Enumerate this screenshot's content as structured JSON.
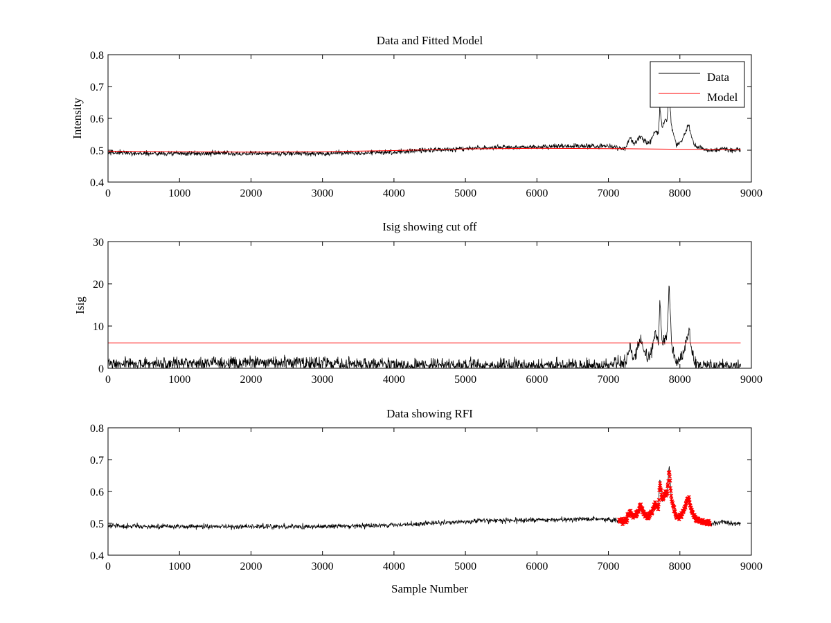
{
  "figure": {
    "background": "#ffffff"
  },
  "chart_data": [
    {
      "type": "line",
      "title": "Data and Fitted Model",
      "xlabel": "",
      "ylabel": "Intensity",
      "xlim": [
        0,
        9000
      ],
      "ylim": [
        0.4,
        0.8
      ],
      "xticks": [
        0,
        1000,
        2000,
        3000,
        4000,
        5000,
        6000,
        7000,
        8000,
        9000
      ],
      "yticks": [
        0.4,
        0.5,
        0.6,
        0.7,
        0.8
      ],
      "ytick_decimals": 1,
      "legend": {
        "placement": "top-right",
        "entries": [
          "Data",
          "Model"
        ]
      },
      "series": [
        {
          "name": "Data",
          "color": "#000000",
          "kind": "noisy-line",
          "x_end": 8850,
          "noise": 0.004,
          "x": [
            0,
            500,
            1000,
            2000,
            3000,
            3500,
            4000,
            4500,
            5000,
            5200,
            5500,
            6000,
            6500,
            7000,
            7200,
            7250,
            7300,
            7350,
            7400,
            7450,
            7500,
            7550,
            7600,
            7650,
            7700,
            7720,
            7750,
            7800,
            7820,
            7850,
            7880,
            7900,
            7950,
            8000,
            8050,
            8100,
            8130,
            8150,
            8200,
            8250,
            8300,
            8400,
            8500,
            8600,
            8700,
            8850
          ],
          "y": [
            0.493,
            0.49,
            0.49,
            0.49,
            0.49,
            0.492,
            0.495,
            0.5,
            0.505,
            0.508,
            0.508,
            0.51,
            0.513,
            0.513,
            0.505,
            0.51,
            0.54,
            0.52,
            0.53,
            0.545,
            0.53,
            0.52,
            0.53,
            0.56,
            0.55,
            0.64,
            0.57,
            0.6,
            0.59,
            0.68,
            0.58,
            0.56,
            0.52,
            0.52,
            0.54,
            0.57,
            0.58,
            0.55,
            0.52,
            0.51,
            0.505,
            0.5,
            0.5,
            0.505,
            0.5,
            0.5
          ]
        },
        {
          "name": "Model",
          "color": "#ff0000",
          "kind": "line",
          "x": [
            0,
            1000,
            2000,
            3000,
            4000,
            5000,
            6000,
            7000,
            8000,
            8850
          ],
          "y": [
            0.497,
            0.495,
            0.494,
            0.495,
            0.499,
            0.504,
            0.506,
            0.505,
            0.503,
            0.502
          ]
        }
      ]
    },
    {
      "type": "line",
      "title": "Isig showing cut off",
      "xlabel": "",
      "ylabel": "Isig",
      "xlim": [
        0,
        9000
      ],
      "ylim": [
        0,
        30
      ],
      "xticks": [
        0,
        1000,
        2000,
        3000,
        4000,
        5000,
        6000,
        7000,
        8000,
        9000
      ],
      "yticks": [
        0,
        10,
        20,
        30
      ],
      "ytick_decimals": 0,
      "series": [
        {
          "color": "#000000",
          "kind": "noisy-line",
          "x_end": 8850,
          "noise": 0.8,
          "x": [
            0,
            1000,
            2000,
            3000,
            4000,
            5000,
            6000,
            7000,
            7250,
            7300,
            7350,
            7400,
            7450,
            7500,
            7550,
            7600,
            7650,
            7700,
            7720,
            7750,
            7800,
            7820,
            7850,
            7880,
            7900,
            7950,
            8000,
            8050,
            8100,
            8130,
            8150,
            8200,
            8250,
            8300,
            8400,
            8500,
            8600,
            8700,
            8850
          ],
          "y": [
            1.0,
            1.1,
            1.3,
            1.2,
            0.9,
            0.7,
            0.6,
            0.7,
            1.5,
            5.5,
            2.5,
            4.0,
            7.0,
            4.0,
            2.5,
            4.0,
            8.0,
            6.0,
            16.5,
            7.0,
            7.0,
            7.0,
            20.5,
            7.0,
            4.0,
            2.0,
            2.0,
            4.0,
            7.0,
            10.0,
            5.0,
            2.0,
            1.0,
            0.8,
            0.6,
            0.6,
            0.8,
            0.6,
            0.5
          ],
          "floor": 0
        },
        {
          "color": "#ff0000",
          "kind": "line",
          "x": [
            0,
            8850
          ],
          "y": [
            6.0,
            6.0
          ]
        }
      ]
    },
    {
      "type": "line",
      "title": "Data showing RFI",
      "xlabel": "Sample Number",
      "ylabel": "",
      "xlim": [
        0,
        9000
      ],
      "ylim": [
        0.4,
        0.8
      ],
      "xticks": [
        0,
        1000,
        2000,
        3000,
        4000,
        5000,
        6000,
        7000,
        8000,
        9000
      ],
      "yticks": [
        0.4,
        0.5,
        0.6,
        0.7,
        0.8
      ],
      "ytick_decimals": 1,
      "series": [
        {
          "color": "#000000",
          "kind": "noisy-line",
          "x_end": 8850,
          "noise": 0.004,
          "x": [
            0,
            500,
            1000,
            2000,
            3000,
            3500,
            4000,
            4500,
            5000,
            5200,
            5500,
            6000,
            6500,
            7000,
            7200,
            7250,
            7300,
            7350,
            7400,
            7450,
            7500,
            7550,
            7600,
            7650,
            7700,
            7720,
            7750,
            7800,
            7820,
            7850,
            7880,
            7900,
            7950,
            8000,
            8050,
            8100,
            8130,
            8150,
            8200,
            8250,
            8300,
            8400,
            8500,
            8600,
            8700,
            8850
          ],
          "y": [
            0.493,
            0.49,
            0.49,
            0.49,
            0.49,
            0.492,
            0.495,
            0.5,
            0.505,
            0.508,
            0.508,
            0.51,
            0.513,
            0.513,
            0.505,
            0.51,
            0.54,
            0.52,
            0.53,
            0.545,
            0.53,
            0.52,
            0.53,
            0.56,
            0.55,
            0.64,
            0.57,
            0.6,
            0.59,
            0.68,
            0.58,
            0.56,
            0.52,
            0.52,
            0.54,
            0.57,
            0.58,
            0.55,
            0.52,
            0.51,
            0.505,
            0.5,
            0.5,
            0.505,
            0.5,
            0.5
          ]
        },
        {
          "color": "#ff0000",
          "kind": "markers",
          "x_range": [
            7150,
            8420
          ],
          "x": [
            7150,
            7200,
            7250,
            7300,
            7350,
            7400,
            7450,
            7500,
            7550,
            7600,
            7650,
            7700,
            7720,
            7750,
            7800,
            7820,
            7850,
            7880,
            7900,
            7950,
            8000,
            8050,
            8100,
            8130,
            8150,
            8200,
            8250,
            8300,
            8420
          ],
          "y": [
            0.51,
            0.505,
            0.51,
            0.54,
            0.52,
            0.53,
            0.555,
            0.53,
            0.52,
            0.53,
            0.56,
            0.55,
            0.635,
            0.57,
            0.6,
            0.59,
            0.67,
            0.58,
            0.56,
            0.52,
            0.52,
            0.54,
            0.57,
            0.58,
            0.55,
            0.52,
            0.51,
            0.505,
            0.5
          ]
        }
      ]
    }
  ]
}
